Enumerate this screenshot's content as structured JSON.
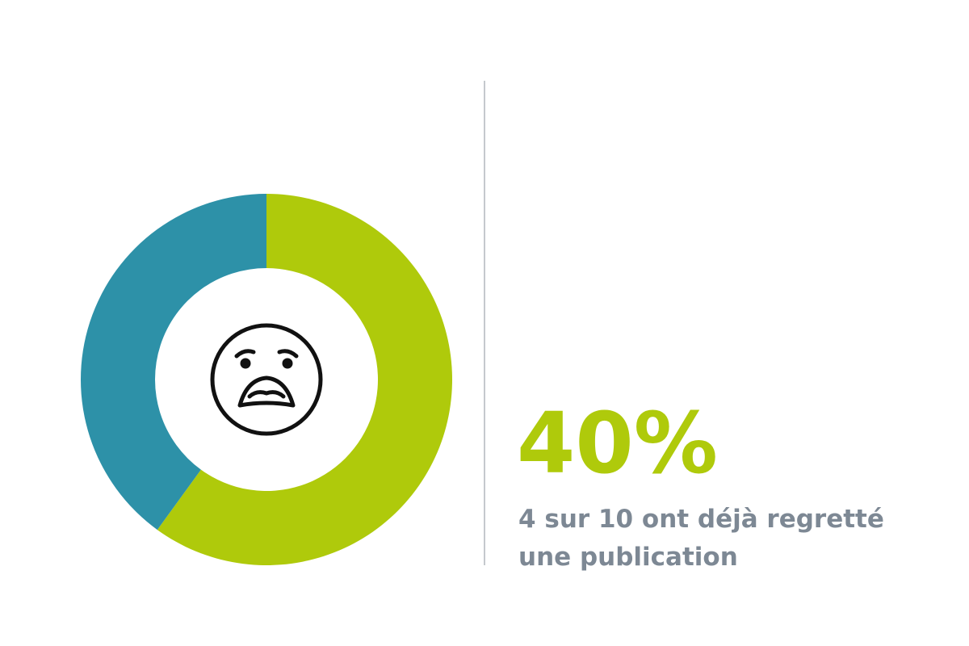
{
  "chart_data": {
    "type": "donut",
    "values": [
      60,
      40
    ],
    "value_labels": [
      null,
      "40%"
    ],
    "colors": [
      "#afca0b",
      "#2d91a8"
    ],
    "caption": [
      "4 sur 10 ont déjà regretté",
      "une publication"
    ]
  }
}
